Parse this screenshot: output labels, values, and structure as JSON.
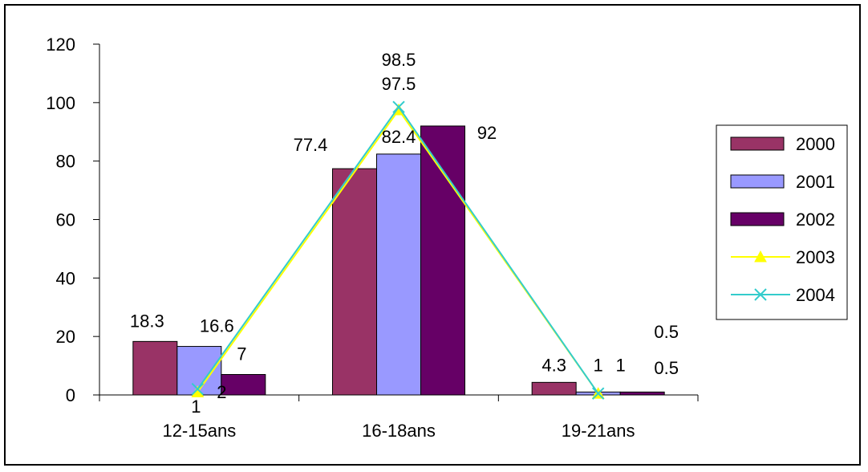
{
  "chart_data": {
    "type": "bar",
    "categories": [
      "12-15ans",
      "16-18ans",
      "19-21ans"
    ],
    "ylim": [
      0,
      120
    ],
    "yticks": [
      0,
      20,
      40,
      60,
      80,
      100,
      120
    ],
    "grid": false,
    "legend_position": "right",
    "series": [
      {
        "name": "2000",
        "kind": "bar",
        "color": "#993366",
        "values": [
          18.3,
          77.4,
          4.3
        ],
        "labels": [
          "18.3",
          "77.4",
          "4.3"
        ]
      },
      {
        "name": "2001",
        "kind": "bar",
        "color": "#9999FF",
        "values": [
          16.6,
          82.4,
          1
        ],
        "labels": [
          "16.6",
          "82.4",
          "1"
        ]
      },
      {
        "name": "2002",
        "kind": "bar",
        "color": "#660066",
        "values": [
          7,
          92,
          1
        ],
        "labels": [
          "7",
          "92",
          "1"
        ]
      },
      {
        "name": "2003",
        "kind": "line",
        "marker": "triangle",
        "color": "#FFFF00",
        "values": [
          1,
          97.5,
          0.5
        ],
        "labels": [
          "1",
          "97.5",
          "0.5"
        ]
      },
      {
        "name": "2004",
        "kind": "line",
        "marker": "x",
        "color": "#33CCCC",
        "values": [
          2,
          98.5,
          0.5
        ],
        "labels": [
          "2",
          "98.5",
          "0.5"
        ]
      }
    ]
  }
}
